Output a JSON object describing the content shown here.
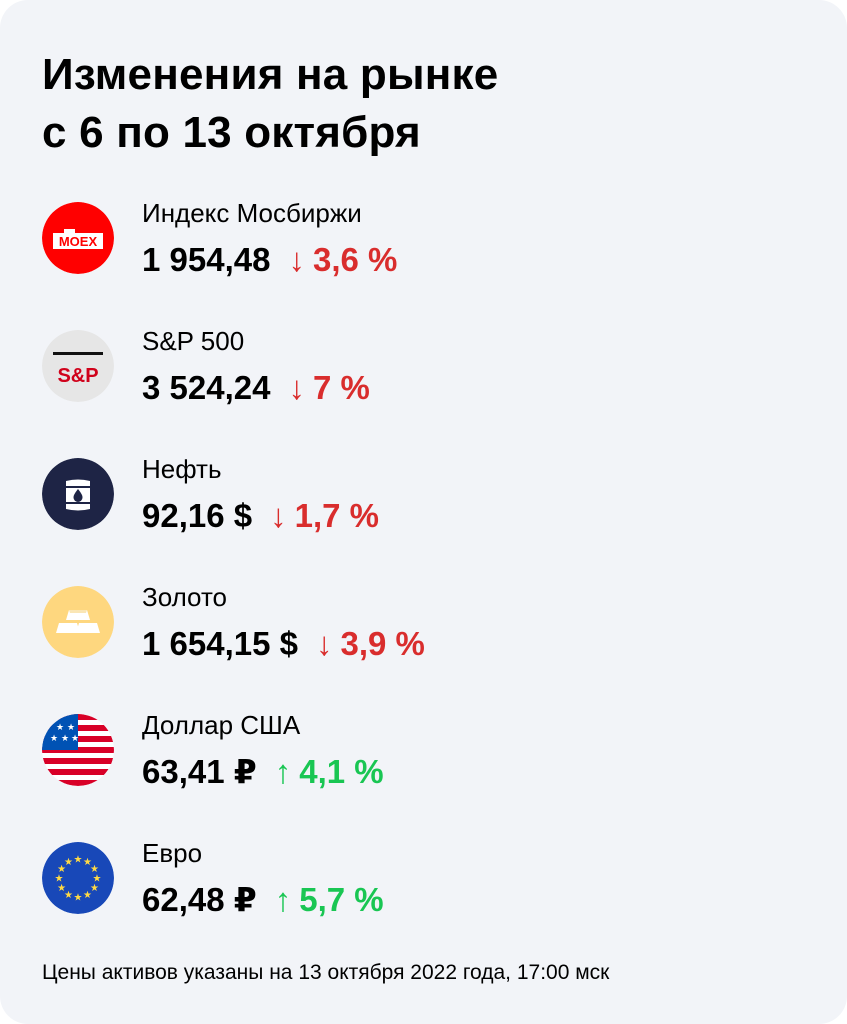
{
  "header": {
    "title_line1": "Изменения на рынке",
    "title_line2": "с 6 по 13 октября"
  },
  "assets": [
    {
      "name": "Индекс Мосбиржи",
      "price": "1 954,48",
      "direction": "down",
      "arrow": "↓",
      "change": "3,6 %",
      "icon": "moex-logo-icon",
      "icon_text": "MOEX",
      "icon_color": "#ff0000"
    },
    {
      "name": "S&P 500",
      "price": "3 524,24",
      "direction": "down",
      "arrow": "↓",
      "change": "7 %",
      "icon": "sp-logo-icon",
      "icon_text": "S&P",
      "icon_color": "#e6e6e6"
    },
    {
      "name": "Нефть",
      "price": "92,16 $",
      "direction": "down",
      "arrow": "↓",
      "change": "1,7 %",
      "icon": "oil-barrel-icon",
      "icon_color": "#1e2445"
    },
    {
      "name": "Золото",
      "price": "1 654,15 $",
      "direction": "down",
      "arrow": "↓",
      "change": "3,9 %",
      "icon": "gold-bar-icon",
      "icon_color": "#fed77f"
    },
    {
      "name": "Доллар США",
      "price": "63,41 ₽",
      "direction": "up",
      "arrow": "↑",
      "change": "4,1 %",
      "icon": "us-flag-icon"
    },
    {
      "name": "Евро",
      "price": "62,48 ₽",
      "direction": "up",
      "arrow": "↑",
      "change": "5,7 %",
      "icon": "eu-flag-icon",
      "icon_color": "#1848b8"
    }
  ],
  "footnote": "Цены активов указаны на 13 октября 2022 года, 17:00 мск",
  "colors": {
    "background": "#f2f4f8",
    "down": "#d92d2d",
    "up": "#19c653",
    "text": "#000000"
  }
}
